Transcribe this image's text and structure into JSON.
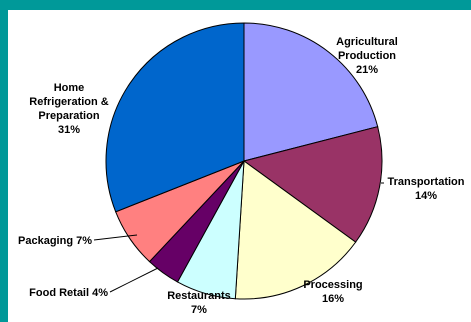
{
  "chart_data": {
    "type": "pie",
    "title": "",
    "slices": [
      {
        "label_lines": [
          "Agricultural",
          "Production",
          "21%"
        ],
        "label": "Agricultural Production",
        "value": 21,
        "color": "#9999ff"
      },
      {
        "label_lines": [
          "Transportation",
          "14%"
        ],
        "label": "Transportation",
        "value": 14,
        "color": "#993366"
      },
      {
        "label_lines": [
          "Processing",
          "16%"
        ],
        "label": "Processing",
        "value": 16,
        "color": "#ffffcc"
      },
      {
        "label_lines": [
          "Restaurants",
          "7%"
        ],
        "label": "Restaurants",
        "value": 7,
        "color": "#ccffff"
      },
      {
        "label_lines": [
          "Food Retail 4%"
        ],
        "label": "Food Retail",
        "value": 4,
        "color": "#660066"
      },
      {
        "label_lines": [
          "Packaging 7%"
        ],
        "label": "Packaging",
        "value": 7,
        "color": "#ff8080"
      },
      {
        "label_lines": [
          "Home",
          "Refrigeration &",
          "Preparation",
          "31%"
        ],
        "label": "Home Refrigeration & Preparation",
        "value": 31,
        "color": "#0066cc"
      }
    ],
    "start_angle_deg": 0,
    "direction": "clockwise"
  }
}
